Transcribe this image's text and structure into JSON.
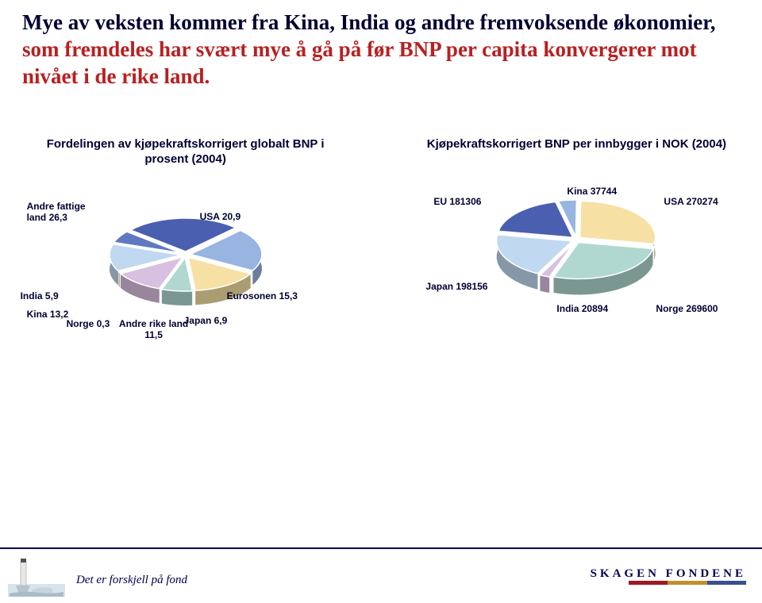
{
  "headline": {
    "part1": "Mye av veksten kommer fra Kina, India og andre fremvoksende økonomier, ",
    "accent": "som fremdeles har svært mye å gå på før BNP per capita konvergerer mot nivået i de rike land."
  },
  "chart_left": {
    "title": "Fordelingen av kjøpekraftskorrigert globalt BNP i prosent (2004)",
    "type": "pie-3d",
    "slices": [
      {
        "key": "andre_fattige",
        "label": "Andre fattige land 26,3",
        "value": 26.3,
        "color": "#4a5fb0"
      },
      {
        "key": "usa",
        "label": "USA 20,9",
        "value": 20.9,
        "color": "#98b4e0"
      },
      {
        "key": "eurosonen",
        "label": "Eurosonen 15,3",
        "value": 15.3,
        "color": "#f7e0a3"
      },
      {
        "key": "japan",
        "label": "Japan 6,9",
        "value": 6.9,
        "color": "#b0d8d0"
      },
      {
        "key": "andre_rike",
        "label": "Andre rike land 11,5",
        "value": 11.5,
        "color": "#d8c0e0"
      },
      {
        "key": "norge",
        "label": "Norge 0,3",
        "value": 0.3,
        "color": "#b89040"
      },
      {
        "key": "kina",
        "label": "Kina 13,2",
        "value": 13.2,
        "color": "#c0d8f0"
      },
      {
        "key": "india",
        "label": "India 5,9",
        "value": 5.9,
        "color": "#6078c0"
      }
    ],
    "label_fontsize": 12,
    "label_color": "#000033",
    "background": "#ffffff"
  },
  "chart_right": {
    "title": "Kjøpekraftskorrigert BNP per innbygger i NOK (2004)",
    "type": "pie-3d",
    "slices": [
      {
        "key": "eu",
        "label": "EU 181306",
        "value": 181306,
        "color": "#4a5fb0"
      },
      {
        "key": "kina",
        "label": "Kina 37744",
        "value": 37744,
        "color": "#98b4e0"
      },
      {
        "key": "usa",
        "label": "USA 270274",
        "value": 270274,
        "color": "#f7e0a3"
      },
      {
        "key": "norge",
        "label": "Norge 269600",
        "value": 269600,
        "color": "#b0d8d0"
      },
      {
        "key": "india",
        "label": "India 20894",
        "value": 20894,
        "color": "#d8c0e0"
      },
      {
        "key": "japan",
        "label": "Japan 198156",
        "value": 198156,
        "color": "#c0d8f0"
      }
    ],
    "label_fontsize": 12,
    "label_color": "#000033",
    "background": "#ffffff"
  },
  "footer": {
    "caption": "Det er forskjell på fond",
    "brand": "SKAGEN FONDENE",
    "brand_colors": [
      "#a01820",
      "#c09030",
      "#385090"
    ]
  }
}
